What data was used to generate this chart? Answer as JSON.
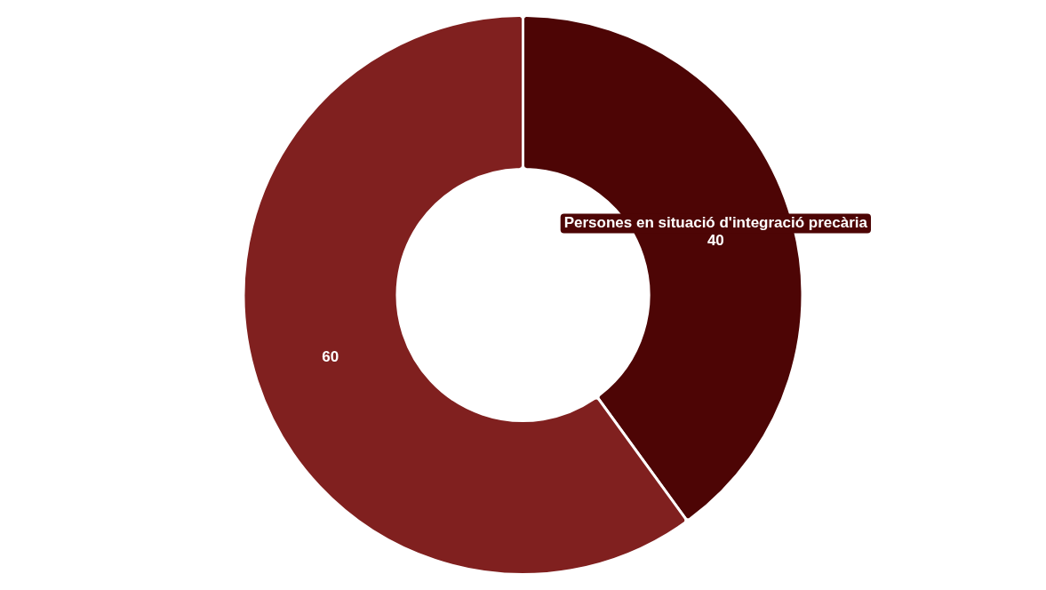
{
  "chart_data": {
    "type": "donut",
    "categories": [
      "Persones en situació d'integració precària",
      null
    ],
    "values": [
      40,
      60
    ],
    "colors": [
      "#4d0505",
      "#80201f"
    ],
    "data_labels": true,
    "legend": false
  }
}
